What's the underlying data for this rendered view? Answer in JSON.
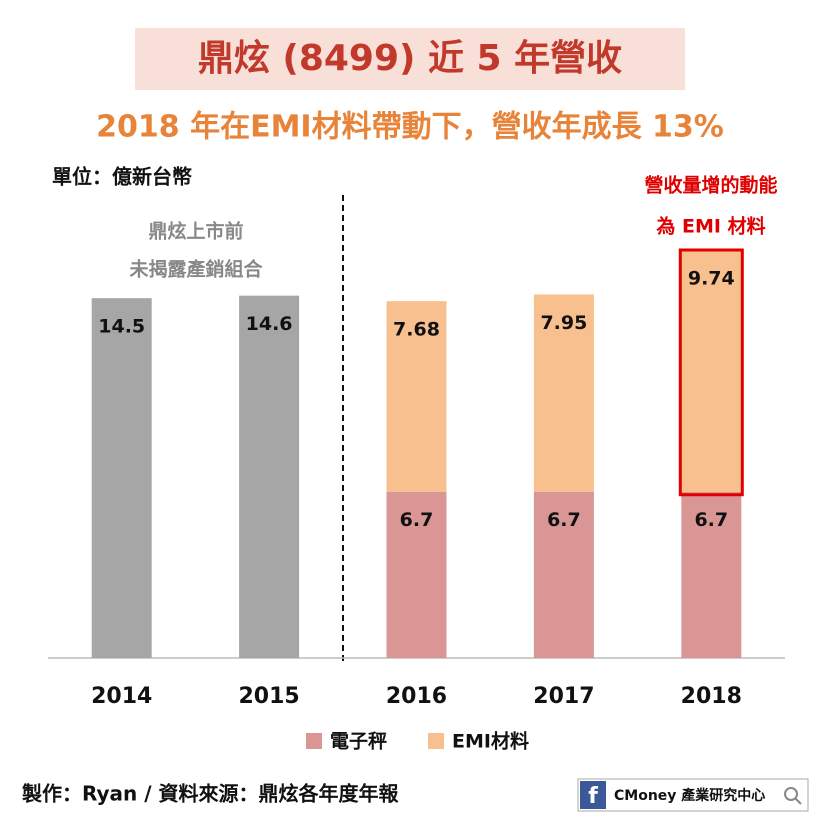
{
  "chart_data": {
    "type": "stacked_bar",
    "title": "鼎炫 (8499) 近 5 年營收",
    "subtitle": "2018 年在EMI材料帶動下，營收年成長 13%",
    "unit_label": "單位：億新台幣",
    "annotations": [
      {
        "lines": [
          "鼎炫上市前",
          "未揭露產銷組合"
        ]
      },
      {
        "lines": [
          "營收量增的動能",
          "為 EMI 材料"
        ]
      }
    ],
    "categories": [
      "2014",
      "2015",
      "2016",
      "2017",
      "2018"
    ],
    "series": [
      {
        "color": "#a6a6a6",
        "values": [
          14.5,
          14.6,
          null,
          null,
          null
        ]
      },
      {
        "name": "電子秤",
        "color": "#d99694",
        "values": [
          null,
          null,
          6.7,
          6.7,
          6.7
        ]
      },
      {
        "name": "EMI材料",
        "color": "#f9c08f",
        "values": [
          null,
          null,
          7.68,
          7.95,
          9.74
        ]
      }
    ],
    "footer": "製作：Ryan / 資料來源：鼎炫各年度年報",
    "logo": {
      "icon": "f",
      "text": "CMoney 產業研究中心"
    }
  }
}
